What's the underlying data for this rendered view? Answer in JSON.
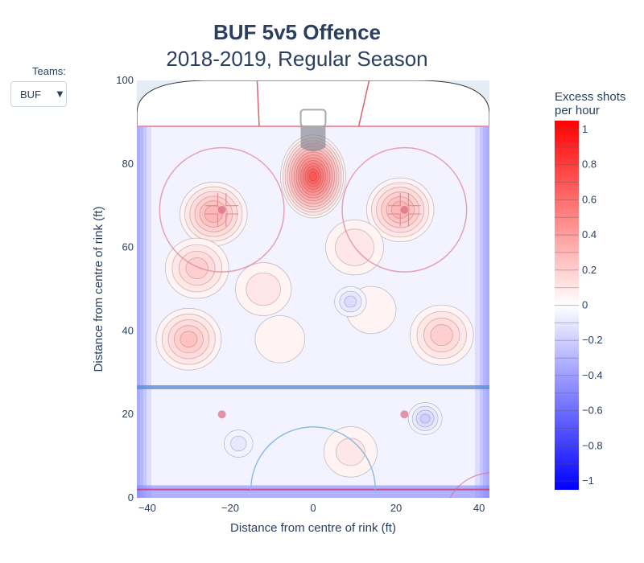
{
  "title": {
    "main": "BUF 5v5 Offence",
    "sub": "2018-2019, Regular Season"
  },
  "teams_selector": {
    "label": "Teams:",
    "selected": "BUF",
    "caret_icon": "triangle-down-icon"
  },
  "chart_data": {
    "type": "heatmap",
    "subtype": "contour",
    "xlabel": "Distance from centre of rink (ft)",
    "ylabel": "Distance from centre of rink (ft)",
    "xlim": [
      -42.5,
      42.5
    ],
    "ylim": [
      0,
      100
    ],
    "x_ticks": [
      -40,
      -20,
      0,
      20,
      40
    ],
    "y_ticks": [
      0,
      20,
      40,
      60,
      80,
      100
    ],
    "colorbar": {
      "title_line1": "Excess shots",
      "title_line2": "per hour",
      "range": [
        -1.05,
        1.05
      ],
      "ticks": [
        1,
        0.8,
        0.6,
        0.4,
        0.2,
        0,
        -0.2,
        -0.4,
        -0.6,
        -0.8,
        -1
      ],
      "tick_labels": [
        "1",
        "0.8",
        "0.6",
        "0.4",
        "0.2",
        "0",
        "−0.2",
        "−0.4",
        "−0.6",
        "−0.8",
        "−1"
      ],
      "color_low": "#0000ff",
      "color_mid": "#ffffff",
      "color_high": "#ff0000"
    },
    "hotspots": [
      {
        "x": 0,
        "y": 77,
        "value": 0.72
      },
      {
        "x": -24,
        "y": 68,
        "value": 0.33
      },
      {
        "x": 21,
        "y": 69,
        "value": 0.33
      },
      {
        "x": -30,
        "y": 38,
        "value": 0.26
      },
      {
        "x": -28,
        "y": 55,
        "value": 0.22
      },
      {
        "x": 31,
        "y": 39,
        "value": 0.22
      },
      {
        "x": 10,
        "y": 60,
        "value": 0.14
      },
      {
        "x": -12,
        "y": 50,
        "value": 0.12
      },
      {
        "x": 14,
        "y": 45,
        "value": 0.08
      },
      {
        "x": 9,
        "y": 11,
        "value": 0.1
      },
      {
        "x": -8,
        "y": 38,
        "value": 0.08
      },
      {
        "x": 9,
        "y": 47,
        "value": -0.15
      },
      {
        "x": 27,
        "y": 19,
        "value": -0.2
      },
      {
        "x": -18,
        "y": 13,
        "value": -0.1
      }
    ],
    "rink_markings": {
      "goal_line_y": 89,
      "blue_line_y": 25,
      "faceoff_dots": [
        {
          "x": -22,
          "y": 69
        },
        {
          "x": 22,
          "y": 69
        },
        {
          "x": -22,
          "y": 20
        },
        {
          "x": 22,
          "y": 20
        }
      ],
      "faceoff_circle_radius": 15
    }
  }
}
